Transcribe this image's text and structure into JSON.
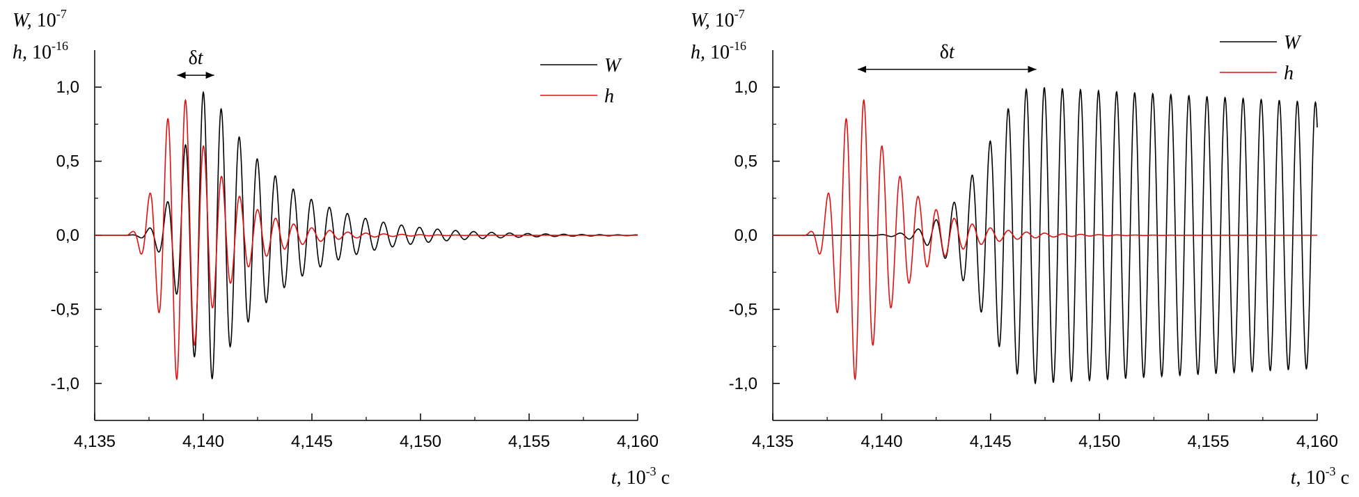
{
  "chart_data": [
    {
      "type": "line",
      "y_axis_label": {
        "w_symbol": "W,",
        "w_unit": "10",
        "w_exp": "-7",
        "h_symbol": "h,",
        "h_unit": "10",
        "h_exp": "-16"
      },
      "x_axis_label": {
        "symbol": "t,",
        "unit": "10",
        "exp": "-3",
        "suffix": "c"
      },
      "xlim": [
        4.135,
        4.16
      ],
      "ylim": [
        -1.25,
        1.25
      ],
      "x_ticks": [
        {
          "value": 4.135,
          "label": "4,135"
        },
        {
          "value": 4.14,
          "label": "4,140"
        },
        {
          "value": 4.145,
          "label": "4,145"
        },
        {
          "value": 4.15,
          "label": "4,150"
        },
        {
          "value": 4.155,
          "label": "4,155"
        },
        {
          "value": 4.16,
          "label": "4,160"
        }
      ],
      "y_ticks": [
        {
          "value": 1.0,
          "label": "1,0"
        },
        {
          "value": 0.5,
          "label": "0,5"
        },
        {
          "value": 0.0,
          "label": "0,0"
        },
        {
          "value": -0.5,
          "label": "-0,5"
        },
        {
          "value": -1.0,
          "label": "-1,0"
        }
      ],
      "annotation": {
        "label": "δt",
        "x_start": 4.1388,
        "x_end": 4.1405,
        "y": 1.08
      },
      "legend_position": "top-right",
      "series": [
        {
          "name": "W",
          "color": "#000000",
          "model": {
            "period": 0.00083,
            "zero_phase_at": 4.13979,
            "start": 4.1364,
            "peak_at": 4.1403,
            "peak": 1.0,
            "rise_tau": 0.0016,
            "decay_tau": 0.0033
          }
        },
        {
          "name": "h",
          "color": "#e01010",
          "model": {
            "period": 0.00083,
            "zero_phase_at": 4.13898,
            "start": 4.1363,
            "peak_at": 4.139,
            "peak": 1.0,
            "rise_tau": 0.0013,
            "decay_tau": 0.002
          }
        }
      ]
    },
    {
      "type": "line",
      "y_axis_label": {
        "w_symbol": "W,",
        "w_unit": "10",
        "w_exp": "-7",
        "h_symbol": "h,",
        "h_unit": "10",
        "h_exp": "-16"
      },
      "x_axis_label": {
        "symbol": "t,",
        "unit": "10",
        "exp": "-3",
        "suffix": "c"
      },
      "xlim": [
        4.135,
        4.16
      ],
      "ylim": [
        -1.25,
        1.25
      ],
      "x_ticks": [
        {
          "value": 4.135,
          "label": "4,135"
        },
        {
          "value": 4.14,
          "label": "4,140"
        },
        {
          "value": 4.145,
          "label": "4,145"
        },
        {
          "value": 4.15,
          "label": "4,150"
        },
        {
          "value": 4.155,
          "label": "4,155"
        },
        {
          "value": 4.16,
          "label": "4,160"
        }
      ],
      "y_ticks": [
        {
          "value": 1.0,
          "label": "1,0"
        },
        {
          "value": 0.5,
          "label": "0,5"
        },
        {
          "value": 0.0,
          "label": "0,0"
        },
        {
          "value": -0.5,
          "label": "-0,5"
        },
        {
          "value": -1.0,
          "label": "-1,0"
        }
      ],
      "annotation": {
        "label": "δt",
        "x_start": 4.1389,
        "x_end": 4.1471,
        "y": 1.12
      },
      "legend_position": "top-right",
      "series": [
        {
          "name": "W",
          "color": "#000000",
          "model": {
            "period": 0.00083,
            "zero_phase_at": 4.13979,
            "start": 4.1364,
            "peak_at": 4.147,
            "peak": 1.0,
            "rise_tau": 0.003,
            "decay_tau": 0.12
          }
        },
        {
          "name": "h",
          "color": "#e01010",
          "model": {
            "period": 0.00083,
            "zero_phase_at": 4.13898,
            "start": 4.1363,
            "peak_at": 4.139,
            "peak": 1.0,
            "rise_tau": 0.0013,
            "decay_tau": 0.002
          }
        }
      ]
    }
  ]
}
